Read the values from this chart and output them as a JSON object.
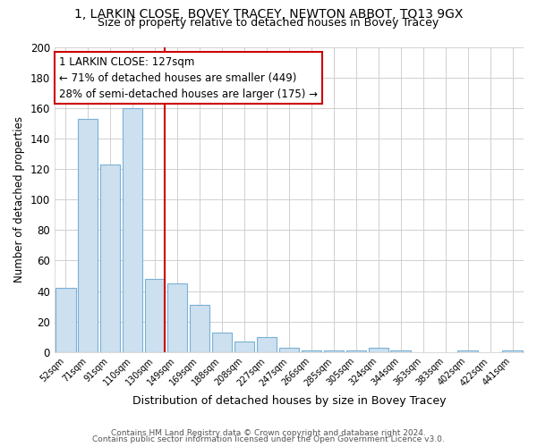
{
  "title1": "1, LARKIN CLOSE, BOVEY TRACEY, NEWTON ABBOT, TQ13 9GX",
  "title2": "Size of property relative to detached houses in Bovey Tracey",
  "xlabel": "Distribution of detached houses by size in Bovey Tracey",
  "ylabel": "Number of detached properties",
  "categories": [
    "52sqm",
    "71sqm",
    "91sqm",
    "110sqm",
    "130sqm",
    "149sqm",
    "169sqm",
    "188sqm",
    "208sqm",
    "227sqm",
    "247sqm",
    "266sqm",
    "285sqm",
    "305sqm",
    "324sqm",
    "344sqm",
    "363sqm",
    "383sqm",
    "402sqm",
    "422sqm",
    "441sqm"
  ],
  "values": [
    42,
    153,
    123,
    160,
    48,
    45,
    31,
    13,
    7,
    10,
    3,
    1,
    1,
    1,
    3,
    1,
    0,
    0,
    1,
    0,
    1
  ],
  "bar_color": "#cce0f0",
  "bar_edge_color": "#7ab0d4",
  "property_line_color": "#cc0000",
  "annotation_title": "1 LARKIN CLOSE: 127sqm",
  "annotation_line1": "← 71% of detached houses are smaller (449)",
  "annotation_line2": "28% of semi-detached houses are larger (175) →",
  "annotation_box_color": "#ffffff",
  "annotation_box_edge": "#cc0000",
  "ylim": [
    0,
    200
  ],
  "yticks": [
    0,
    20,
    40,
    60,
    80,
    100,
    120,
    140,
    160,
    180,
    200
  ],
  "footer1": "Contains HM Land Registry data © Crown copyright and database right 2024.",
  "footer2": "Contains public sector information licensed under the Open Government Licence v3.0.",
  "background_color": "#ffffff",
  "grid_color": "#d0d0d0"
}
